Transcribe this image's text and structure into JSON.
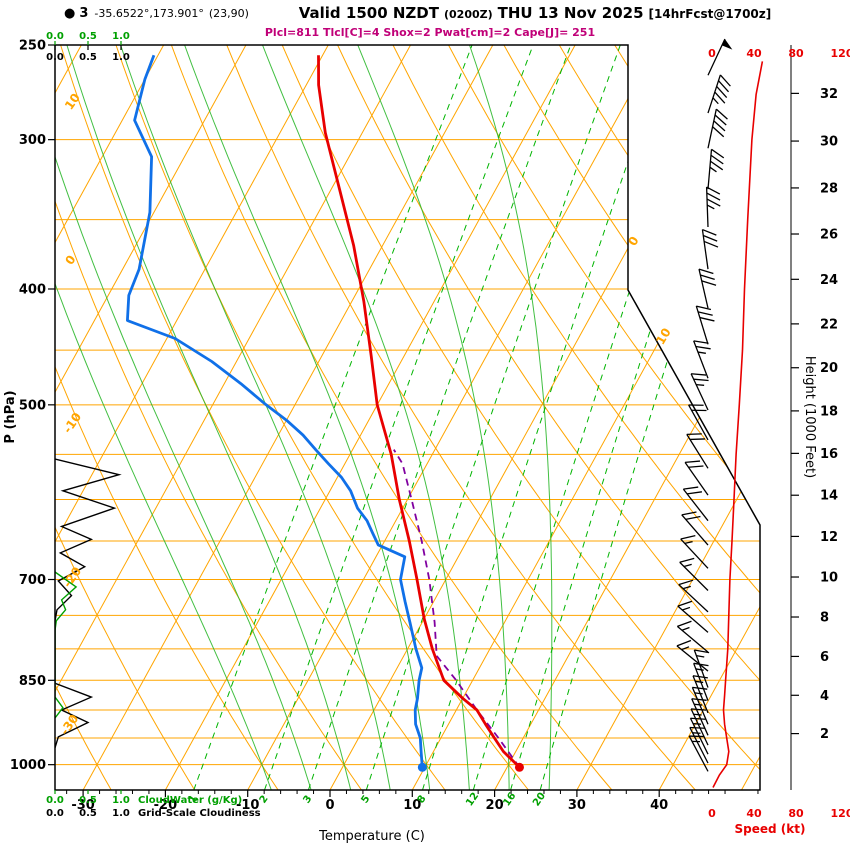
{
  "header": {
    "station_bullet": "●",
    "station": "3",
    "coords": "-35.6522°,173.901°",
    "gridpoint": "(23,90)",
    "valid": "Valid 1500 NZDT",
    "valid_z": "(0200Z)",
    "valid_date": "THU 13 Nov 2025",
    "fcst": "[14hrFcst@1700z]",
    "stats": "Plcl=811 Tlcl[C]=4 Shox=2 Pwat[cm]=2 Cape[J]= 251"
  },
  "axes": {
    "pressure_label": "P (hPa)",
    "temperature_label": "Temperature (C)",
    "height_label": "Height (1000 Feet)",
    "speed_label": "Speed (kt)",
    "cloudwater_label": "CloudWater (g/Kg)",
    "cloudiness_label": "Grid-Scale Cloudiness"
  },
  "chart_data": {
    "type": "skewt_log_p_sounding",
    "pressure_axis_hpa": {
      "range": [
        250,
        1050
      ],
      "gridlines": [
        250,
        300,
        350,
        400,
        450,
        500,
        550,
        600,
        650,
        700,
        750,
        800,
        850,
        900,
        950,
        1000
      ],
      "labeled": [
        250,
        300,
        400,
        500,
        700,
        850,
        1000
      ]
    },
    "temperature_axis_c": {
      "labels": [
        -30,
        -20,
        -10,
        0,
        10,
        20,
        30,
        40
      ],
      "minor_step": 2
    },
    "height_axis_kft": [
      2,
      4,
      6,
      8,
      10,
      12,
      14,
      16,
      18,
      20,
      22,
      24,
      26,
      28,
      30,
      32
    ],
    "speed_axis_kt": [
      0,
      40,
      80,
      120
    ],
    "cloud_axis": [
      "0.0",
      "0.5",
      "1.0"
    ],
    "isotherms_c": {
      "min": -80,
      "max": 50,
      "step": 10,
      "inline_labels": [
        0,
        10
      ]
    },
    "dry_adiabats_c": {
      "min": -30,
      "max": 130,
      "step": 10,
      "edge_labels": [
        10,
        0,
        -10,
        -20,
        -30
      ]
    },
    "moist_adiabats_c": [
      -10,
      -5,
      0,
      5,
      10,
      15,
      20,
      25
    ],
    "mixing_ratio_gkg": [
      1,
      2,
      3,
      5,
      8,
      12,
      16,
      20
    ],
    "sounding": {
      "surface_pressure_hpa": 1005,
      "surface_temperature_c": 21.5,
      "surface_dewpoint_c": 9.7,
      "temperature_c_by_hpa": [
        [
          1005,
          21.5
        ],
        [
          975,
          18.5
        ],
        [
          950,
          16.5
        ],
        [
          925,
          14.5
        ],
        [
          900,
          12.5
        ],
        [
          880,
          10
        ],
        [
          850,
          6.5
        ],
        [
          800,
          3
        ],
        [
          755,
          0
        ],
        [
          700,
          -3.5
        ],
        [
          650,
          -7
        ],
        [
          600,
          -11
        ],
        [
          550,
          -15
        ],
        [
          500,
          -20
        ],
        [
          455,
          -24
        ],
        [
          410,
          -28.5
        ],
        [
          368,
          -33.5
        ],
        [
          330,
          -39
        ],
        [
          296,
          -44.5
        ],
        [
          270,
          -48.5
        ],
        [
          255,
          -50.5
        ]
      ],
      "dewpoint_c_by_hpa": [
        [
          1005,
          9.7
        ],
        [
          975,
          8.5
        ],
        [
          950,
          7.5
        ],
        [
          925,
          6
        ],
        [
          900,
          5
        ],
        [
          880,
          4.5
        ],
        [
          850,
          3.5
        ],
        [
          830,
          3
        ],
        [
          800,
          1
        ],
        [
          760,
          -1.5
        ],
        [
          730,
          -3.5
        ],
        [
          700,
          -5.5
        ],
        [
          670,
          -6.5
        ],
        [
          655,
          -10.5
        ],
        [
          640,
          -12
        ],
        [
          625,
          -13.5
        ],
        [
          610,
          -15.5
        ],
        [
          590,
          -17.5
        ],
        [
          575,
          -19.5
        ],
        [
          560,
          -22
        ],
        [
          545,
          -24.5
        ],
        [
          530,
          -27
        ],
        [
          515,
          -30
        ],
        [
          500,
          -33.5
        ],
        [
          480,
          -38
        ],
        [
          460,
          -43
        ],
        [
          440,
          -49
        ],
        [
          425,
          -56
        ],
        [
          405,
          -57.5
        ],
        [
          385,
          -58
        ],
        [
          345,
          -60.5
        ],
        [
          310,
          -64
        ],
        [
          289,
          -68.5
        ],
        [
          267,
          -70
        ],
        [
          255,
          -70.5
        ]
      ],
      "parcel_c_by_hpa": [
        [
          1005,
          21.5
        ],
        [
          950,
          17
        ],
        [
          900,
          12.5
        ],
        [
          850,
          8
        ],
        [
          811,
          4
        ],
        [
          760,
          1.5
        ],
        [
          700,
          -2
        ],
        [
          650,
          -5.5
        ],
        [
          600,
          -9.5
        ],
        [
          560,
          -13
        ],
        [
          545,
          -15
        ]
      ]
    },
    "wind_profile_kt_by_hpa": [
      [
        1045,
        1
      ],
      [
        1020,
        7
      ],
      [
        1000,
        14
      ],
      [
        975,
        16
      ],
      [
        950,
        14
      ],
      [
        925,
        12
      ],
      [
        900,
        11
      ],
      [
        875,
        12
      ],
      [
        850,
        13
      ],
      [
        800,
        15
      ],
      [
        750,
        16
      ],
      [
        700,
        17
      ],
      [
        650,
        19
      ],
      [
        600,
        21
      ],
      [
        550,
        23
      ],
      [
        500,
        26
      ],
      [
        450,
        29
      ],
      [
        400,
        31
      ],
      [
        350,
        34
      ],
      [
        300,
        38
      ],
      [
        275,
        42
      ],
      [
        258,
        48
      ]
    ],
    "wind_barbs_p_dir_kt": [
      [
        265,
        25,
        50
      ],
      [
        285,
        18,
        45
      ],
      [
        305,
        12,
        40
      ],
      [
        330,
        5,
        35
      ],
      [
        355,
        358,
        35
      ],
      [
        385,
        352,
        30
      ],
      [
        415,
        347,
        30
      ],
      [
        445,
        343,
        28
      ],
      [
        475,
        339,
        25
      ],
      [
        505,
        335,
        25
      ],
      [
        535,
        331,
        22
      ],
      [
        565,
        328,
        20
      ],
      [
        595,
        325,
        20
      ],
      [
        625,
        322,
        18
      ],
      [
        655,
        319,
        18
      ],
      [
        685,
        317,
        16
      ],
      [
        715,
        315,
        16
      ],
      [
        745,
        313,
        15
      ],
      [
        775,
        311,
        15
      ],
      [
        805,
        310,
        15
      ],
      [
        835,
        309,
        14
      ],
      [
        862,
        340,
        15
      ],
      [
        884,
        339,
        15
      ],
      [
        905,
        338,
        15
      ],
      [
        925,
        337,
        16
      ],
      [
        945,
        336,
        16
      ],
      [
        963,
        335,
        15
      ],
      [
        980,
        334,
        15
      ],
      [
        997,
        333,
        15
      ],
      [
        1013,
        332,
        15
      ]
    ],
    "cloudiness_frac_by_hpa": [
      [
        555,
        0
      ],
      [
        572,
        0.97
      ],
      [
        590,
        0.12
      ],
      [
        610,
        0.9
      ],
      [
        632,
        0.1
      ],
      [
        648,
        0.55
      ],
      [
        665,
        0.08
      ],
      [
        683,
        0.45
      ],
      [
        702,
        0.05
      ],
      [
        722,
        0.25
      ],
      [
        742,
        0.03
      ],
      [
        758,
        0
      ],
      [
        855,
        0
      ],
      [
        878,
        0.55
      ],
      [
        900,
        0.1
      ],
      [
        922,
        0.5
      ],
      [
        948,
        0.05
      ],
      [
        968,
        0
      ]
    ],
    "cloudwater_gkg_by_hpa": [
      [
        690,
        0
      ],
      [
        710,
        0.32
      ],
      [
        728,
        0.1
      ],
      [
        742,
        0.16
      ],
      [
        758,
        0.02
      ],
      [
        772,
        0
      ],
      [
        878,
        0
      ],
      [
        896,
        0.12
      ],
      [
        914,
        0
      ]
    ],
    "colors": {
      "grid": "#FFA500",
      "moist_adiabat": "#2EB82E",
      "mixing_ratio": "#00B400",
      "temperature": "#E80000",
      "dewpoint": "#1070E8",
      "parcel": "#8000A0",
      "speed": "#E80000",
      "barbs": "#000000",
      "cloudiness": "#000000",
      "cloudwater": "#00A000",
      "stats": "#C00078"
    }
  }
}
